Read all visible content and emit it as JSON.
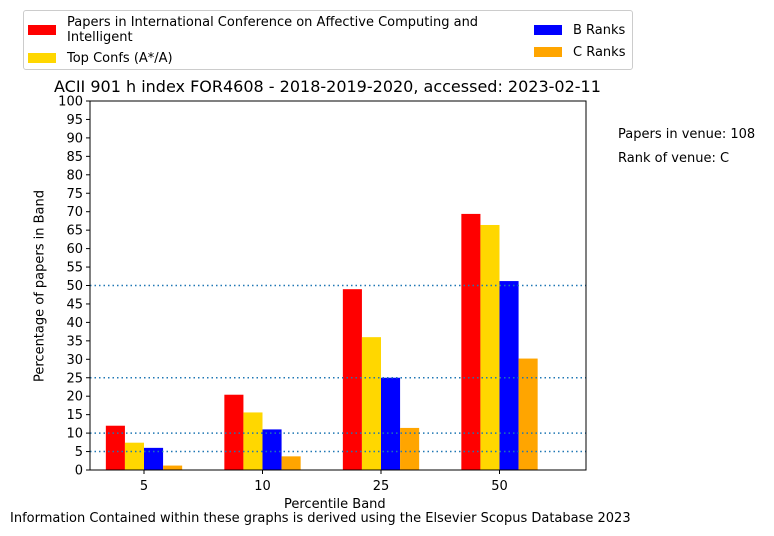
{
  "chart_data": {
    "type": "bar",
    "title": "ACII 901 h index FOR4608 - 2018-2019-2020, accessed: 2023-02-11",
    "xlabel": "Percentile Band",
    "ylabel": "Percentage of papers in Band",
    "categories": [
      "5",
      "10",
      "25",
      "50"
    ],
    "ylim": [
      0,
      100
    ],
    "yticks": [
      "0",
      "5",
      "10",
      "15",
      "20",
      "25",
      "30",
      "35",
      "40",
      "45",
      "50",
      "55",
      "60",
      "65",
      "70",
      "75",
      "80",
      "85",
      "90",
      "95",
      "100"
    ],
    "series": [
      {
        "name": "Papers in International Conference on Affective Computing and Intelligent",
        "color": "#ff0000",
        "values": [
          12,
          20.4,
          49,
          69.4
        ]
      },
      {
        "name": "Top Confs (A*/A)",
        "color": "#ffd700",
        "values": [
          7.4,
          15.6,
          36,
          66.4
        ]
      },
      {
        "name": "B Ranks",
        "color": "#0000ff",
        "values": [
          6,
          11,
          25,
          51.2
        ]
      },
      {
        "name": "C Ranks",
        "color": "#ffa500",
        "values": [
          1.2,
          3.7,
          11.4,
          30.2
        ]
      }
    ],
    "reference_lines": [
      5,
      10,
      25,
      50
    ],
    "reference_line_color": "#1f77b4",
    "grid": false,
    "legend_placement": "top"
  },
  "legend": {
    "line1": "Papers in International Conference on Affective Computing and",
    "line2": "Intelligent",
    "top": "Top Confs (A*/A)",
    "b": "B Ranks",
    "c": "C Ranks"
  },
  "notes": {
    "papers": "Papers in venue: 108",
    "rank": "Rank of venue: C"
  },
  "footer": "Information Contained within these graphs is derived using the Elsevier Scopus Database 2023"
}
